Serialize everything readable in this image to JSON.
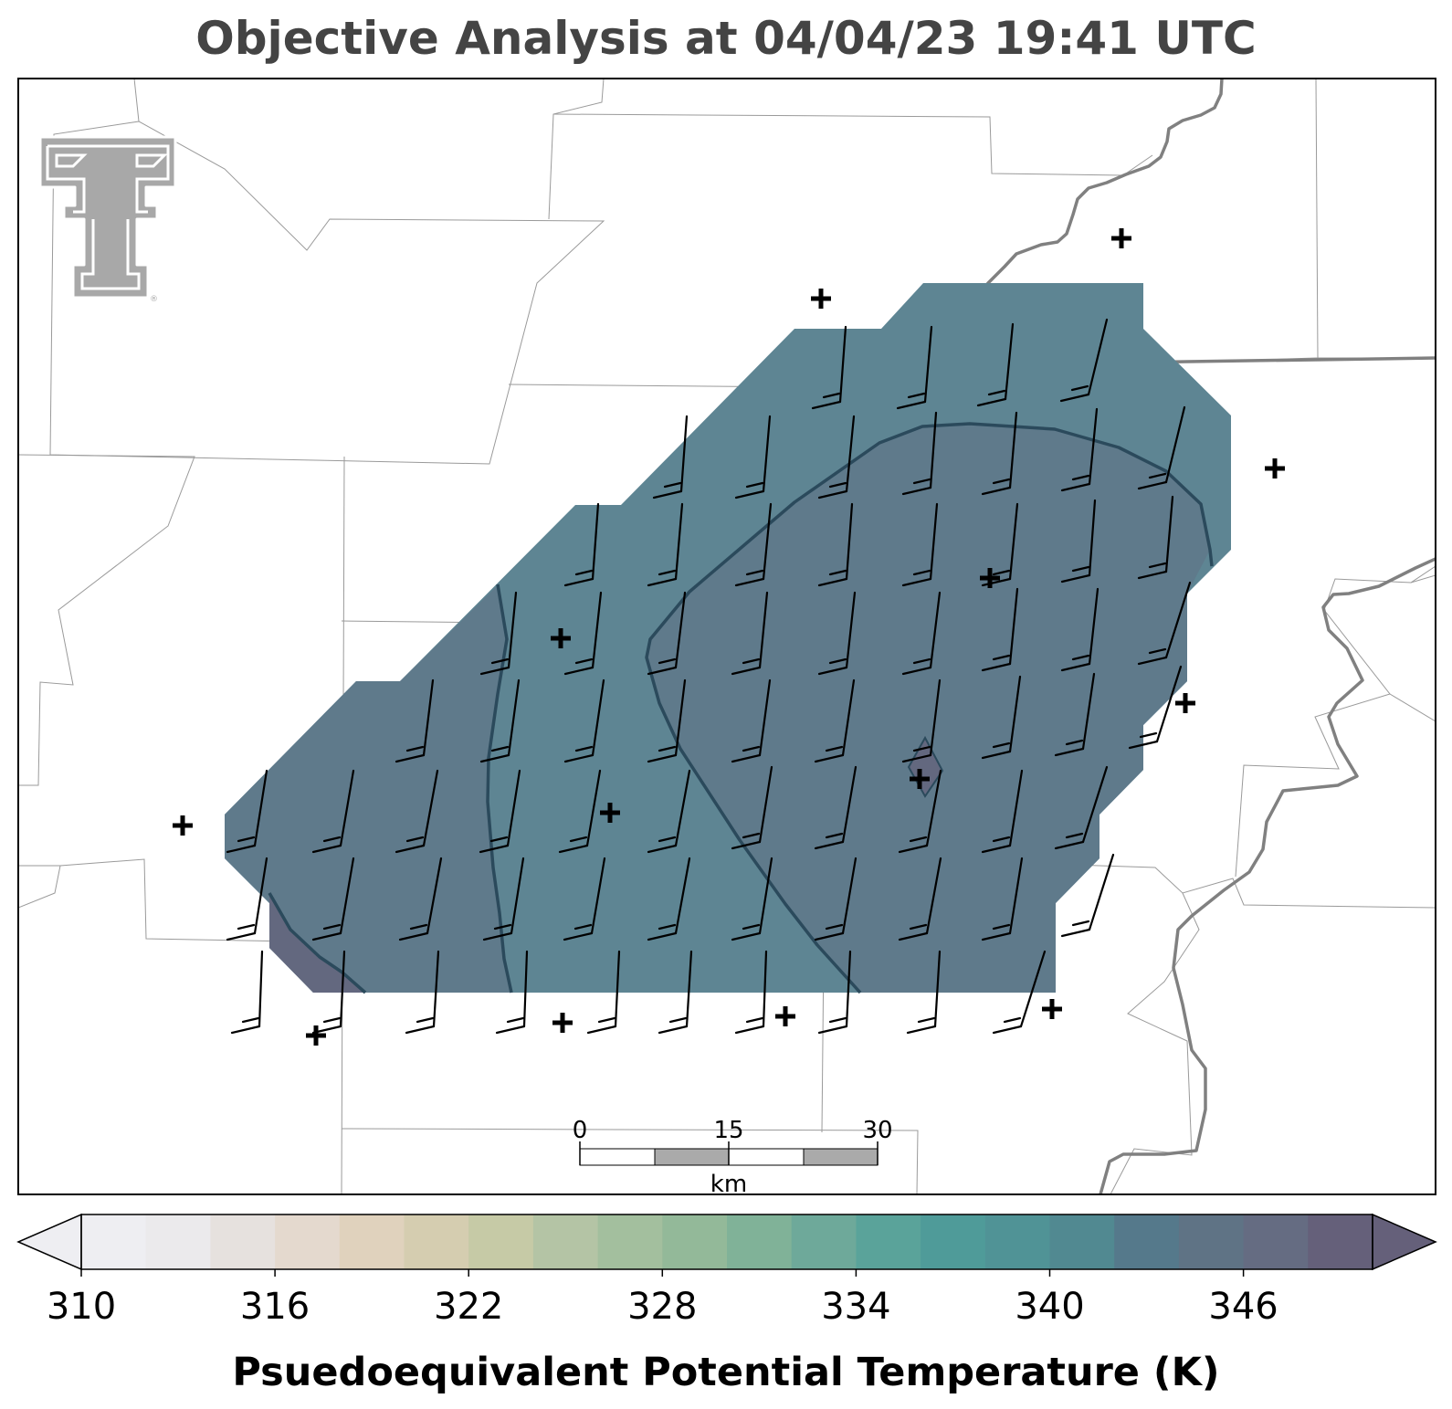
{
  "title": "Objective Analysis at 04/04/23 19:41 UTC",
  "colorbar": {
    "label": "Psuedoequivalent Potential Temperature (K)",
    "ticks": [
      "310",
      "316",
      "322",
      "328",
      "334",
      "340",
      "346"
    ],
    "min": 310,
    "max": 350,
    "step": 2,
    "extend": "both",
    "colors": [
      "#eeeef2",
      "#ebeaec",
      "#e6e1de",
      "#e4d9ce",
      "#e0d2bd",
      "#d5cdb0",
      "#c6caa6",
      "#b4c4a5",
      "#a3bf9e",
      "#93b999",
      "#80b298",
      "#6ea99a",
      "#5aa39a",
      "#4f9b99",
      "#509396",
      "#518991",
      "#55798b",
      "#5f7385",
      "#656c82",
      "#65607a"
    ]
  },
  "scale_bar": {
    "labels": [
      "0",
      "15",
      "30"
    ],
    "unit": "km"
  },
  "logo": {
    "icon": "texas-tech-double-t-logo",
    "registered_mark": "®"
  },
  "analysis": {
    "region_fill": "#5e8593",
    "core_fill": "#5f7a8b",
    "contour_color": "#2b4a5c",
    "station_symbol": "+",
    "wind_barb_color": "#000000"
  }
}
